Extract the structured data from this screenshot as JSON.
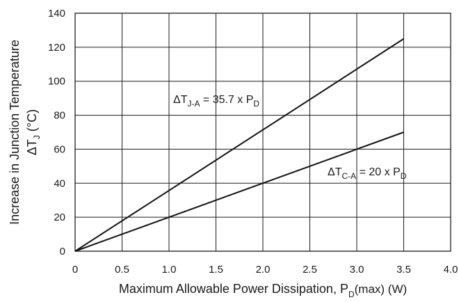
{
  "chart_data": {
    "type": "line",
    "xlabel": {
      "main": "Maximum Allowable Power Dissipation, P",
      "sub": "D",
      "tail": "(max) (W)"
    },
    "ylabel": {
      "line1": "Increase in Junction Temperature",
      "line2_delta": "ΔT",
      "line2_sub": "J",
      "line2_tail": " (°C)"
    },
    "xlim": [
      0,
      4.0
    ],
    "ylim": [
      0,
      140
    ],
    "xticks": [
      "0",
      "0.5",
      "1.0",
      "1.5",
      "2.0",
      "2.5",
      "3.0",
      "3.5",
      "4.0"
    ],
    "yticks": [
      "0",
      "20",
      "40",
      "60",
      "80",
      "100",
      "120",
      "140"
    ],
    "grid": true,
    "series": [
      {
        "annotation": {
          "delta": "ΔT",
          "sub": "J-A",
          "eq": " = 35.7 x P",
          "sub2": "D"
        },
        "x": [
          0,
          3.5
        ],
        "y": [
          0,
          124.95
        ]
      },
      {
        "annotation": {
          "delta": "ΔT",
          "sub": "C-A",
          "eq": " = 20 x P",
          "sub2": "D"
        },
        "x": [
          0,
          3.5
        ],
        "y": [
          0,
          70
        ]
      }
    ]
  }
}
